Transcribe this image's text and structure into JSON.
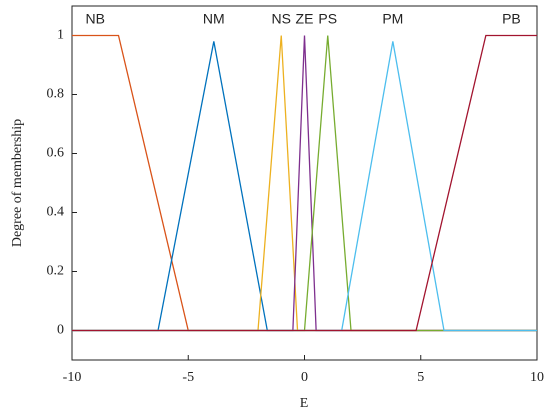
{
  "chart_data": {
    "type": "line",
    "xlabel": "E",
    "ylabel": "Degree of membership",
    "xlim": [
      -10,
      10
    ],
    "xticks": [
      -10,
      -5,
      0,
      5,
      10
    ],
    "ylim": [
      -0.1,
      1.1
    ],
    "yticks": [
      0,
      0.2,
      0.4,
      0.6,
      0.8,
      1
    ],
    "series": [
      {
        "name": "NB",
        "color": "#d95319",
        "x": [
          -10,
          -8,
          -5,
          10
        ],
        "values": [
          1,
          1,
          0,
          0
        ]
      },
      {
        "name": "NM",
        "color": "#0072bd",
        "x": [
          -10,
          -6.3,
          -3.9,
          -1.6,
          10
        ],
        "values": [
          0,
          0,
          0.98,
          0,
          0
        ]
      },
      {
        "name": "NS",
        "color": "#edb120",
        "x": [
          -10,
          -2,
          -1,
          -0.3,
          10
        ],
        "values": [
          0,
          0,
          1,
          0,
          0
        ]
      },
      {
        "name": "ZE",
        "color": "#7e2f8e",
        "x": [
          -10,
          -0.5,
          0,
          0.5,
          10
        ],
        "values": [
          0,
          0,
          1,
          0,
          0
        ]
      },
      {
        "name": "PS",
        "color": "#77ac30",
        "x": [
          -10,
          0,
          1,
          2,
          10
        ],
        "values": [
          0,
          0,
          1,
          0,
          0
        ]
      },
      {
        "name": "PM",
        "color": "#4dbeee",
        "x": [
          -10,
          1.6,
          3.8,
          6,
          10
        ],
        "values": [
          0,
          0,
          0.98,
          0,
          0
        ]
      },
      {
        "name": "PB",
        "color": "#a2142f",
        "x": [
          -10,
          4.8,
          7.8,
          10
        ],
        "values": [
          0,
          0,
          1,
          1
        ]
      }
    ]
  }
}
